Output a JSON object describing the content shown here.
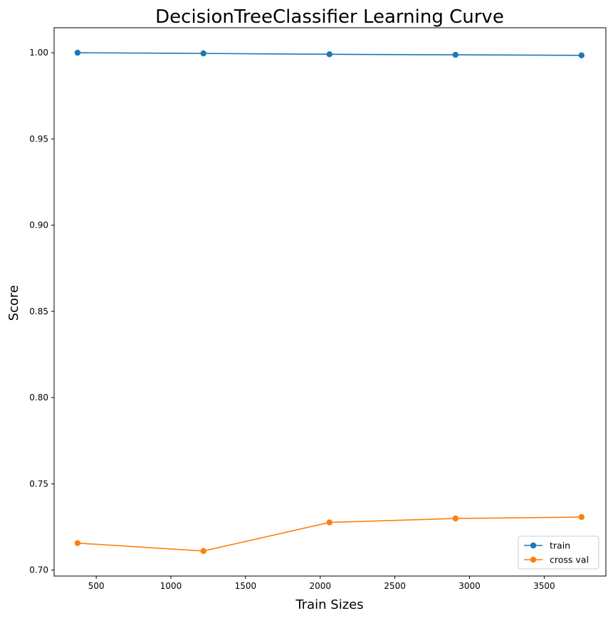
{
  "chart_data": {
    "type": "line",
    "title": "DecisionTreeClassifier Learning Curve",
    "xlabel": "Train Sizes",
    "ylabel": "Score",
    "xlim": [
      218,
      3913
    ],
    "ylim": [
      0.6965,
      1.0145
    ],
    "xticks": [
      500,
      1000,
      1500,
      2000,
      2500,
      3000,
      3500
    ],
    "xtick_labels": [
      "500",
      "1000",
      "1500",
      "2000",
      "2500",
      "3000",
      "3500"
    ],
    "yticks": [
      0.7,
      0.75,
      0.8,
      0.85,
      0.9,
      0.95,
      1.0
    ],
    "ytick_labels": [
      "0.70",
      "0.75",
      "0.80",
      "0.85",
      "0.90",
      "0.95",
      "1.00"
    ],
    "grid": false,
    "legend_position": "lower-right",
    "x": [
      375,
      1218,
      2062,
      2906,
      3750
    ],
    "series": [
      {
        "name": "train",
        "color": "#1f77b4",
        "marker": "circle",
        "values": [
          1.0,
          0.9996,
          0.9991,
          0.9988,
          0.9985
        ]
      },
      {
        "name": "cross val",
        "color": "#ff7f0e",
        "marker": "circle",
        "values": [
          0.7156,
          0.711,
          0.7276,
          0.7299,
          0.7307
        ]
      }
    ]
  }
}
